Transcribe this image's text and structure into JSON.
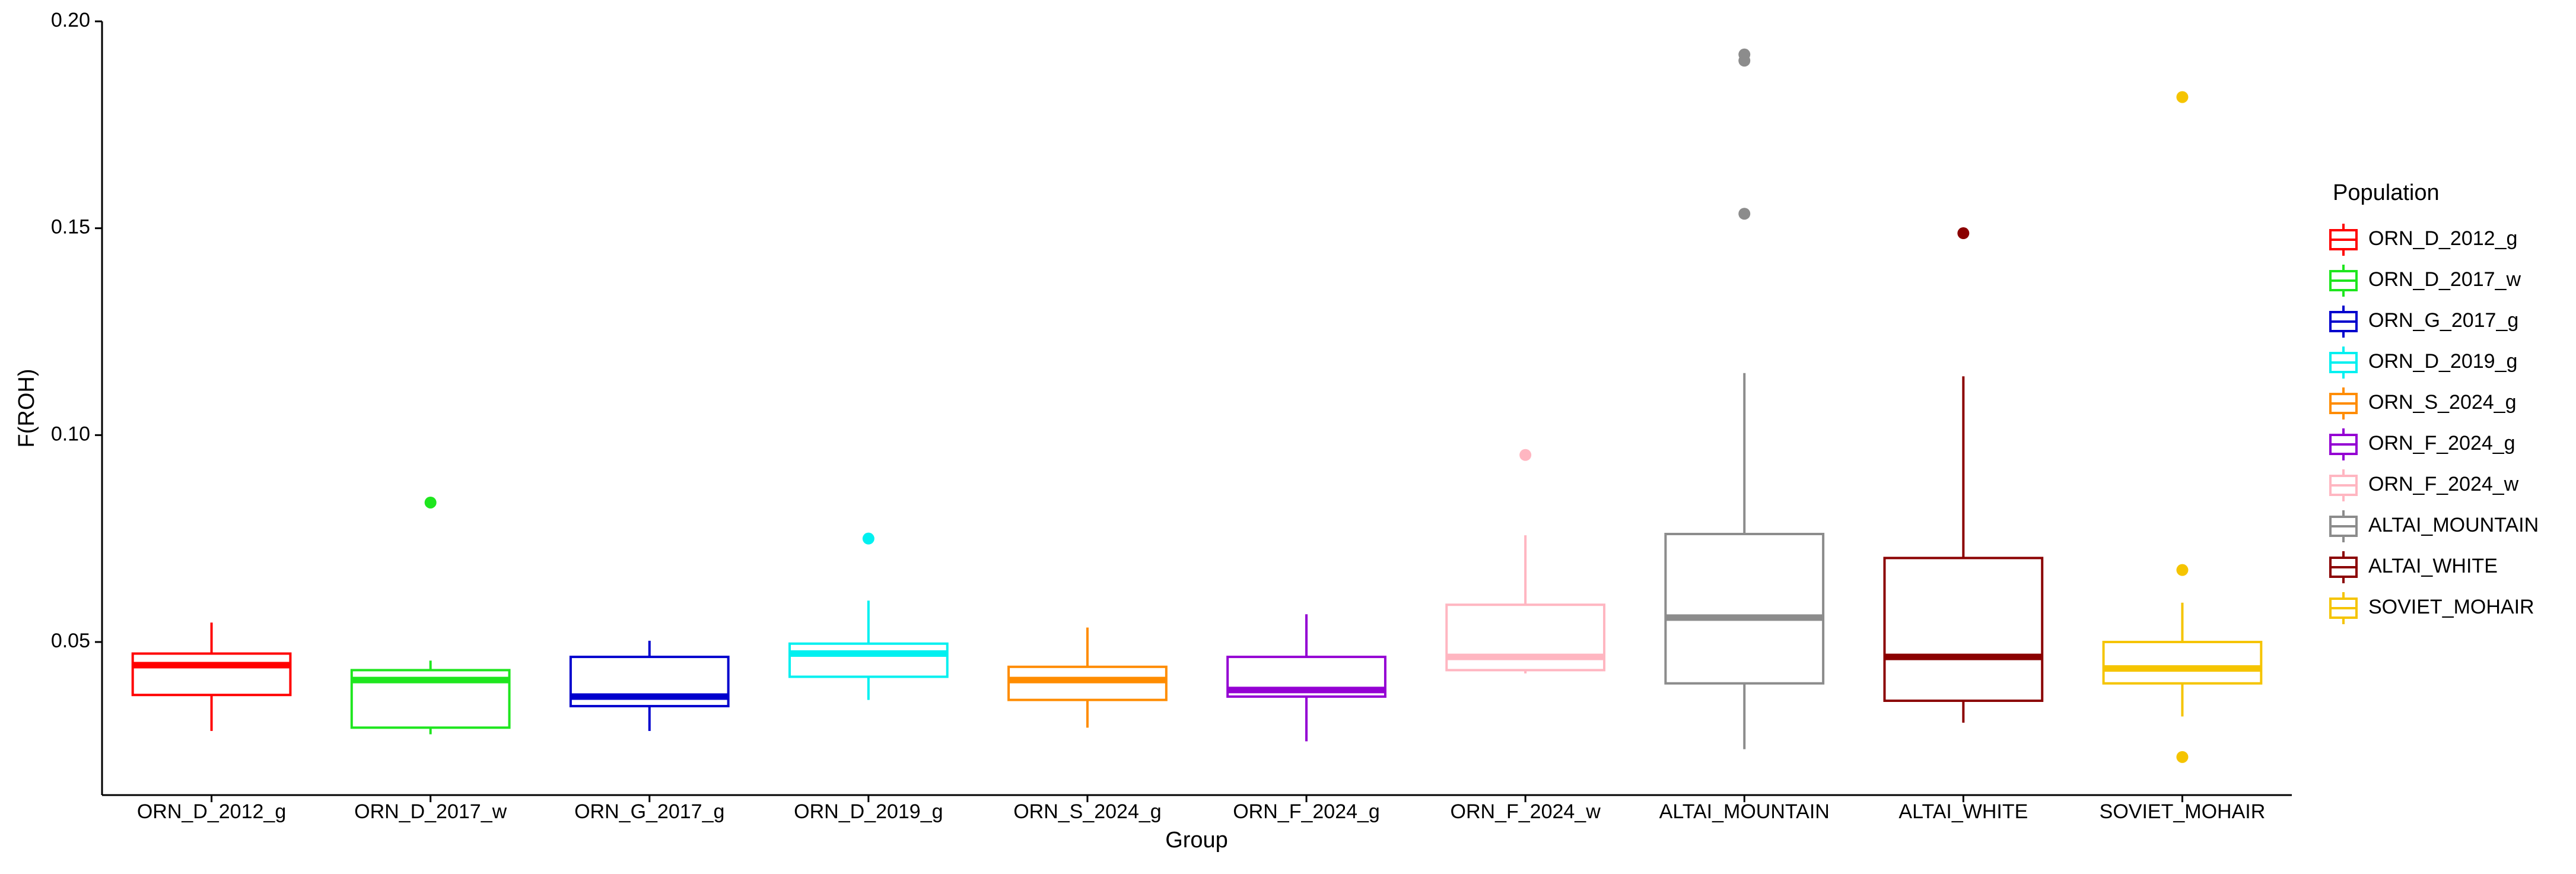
{
  "chart_data": {
    "type": "box",
    "x_label": "Group",
    "y_label": "F(ROH)",
    "legend_title": "Population",
    "legend_position": "right",
    "categories": [
      "ORN_D_2012_g",
      "ORN_D_2017_w",
      "ORN_G_2017_g",
      "ORN_D_2019_g",
      "ORN_S_2024_g",
      "ORN_F_2024_g",
      "ORN_F_2024_w",
      "ALTAI_MOUNTAIN",
      "ALTAI_WHITE",
      "SOVIET_MOHAIR"
    ],
    "ylim": [
      0.013,
      0.2
    ],
    "yticks": [
      0.05,
      {
        "value": 0.1,
        "label": "0.10"
      },
      0.15,
      {
        "value": 0.2,
        "label": "0.20"
      }
    ],
    "series": [
      {
        "name": "ORN_D_2012_g",
        "color": "#ff0000",
        "stats": [
          0.0285,
          0.0372,
          0.0444,
          0.0472,
          0.0547
        ],
        "outliers": []
      },
      {
        "name": "ORN_D_2017_w",
        "color": "#1ee61e",
        "stats": [
          0.0277,
          0.0293,
          0.0408,
          0.0432,
          0.0455
        ],
        "outliers": [
          0.0837
        ]
      },
      {
        "name": "ORN_G_2017_g",
        "color": "#0000cd",
        "stats": [
          0.0285,
          0.0345,
          0.0368,
          0.0464,
          0.0503
        ],
        "outliers": []
      },
      {
        "name": "ORN_D_2019_g",
        "color": "#00f0f0",
        "stats": [
          0.036,
          0.0416,
          0.0472,
          0.0496,
          0.06
        ],
        "outliers": [
          0.075
        ]
      },
      {
        "name": "ORN_S_2024_g",
        "color": "#ff8c00",
        "stats": [
          0.0293,
          0.036,
          0.0408,
          0.044,
          0.0535
        ],
        "outliers": []
      },
      {
        "name": "ORN_F_2024_g",
        "color": "#9400d3",
        "stats": [
          0.026,
          0.0368,
          0.0384,
          0.0464,
          0.0567
        ],
        "outliers": []
      },
      {
        "name": "ORN_F_2024_w",
        "color": "#ffb6c1",
        "stats": [
          0.0424,
          0.0432,
          0.0464,
          0.059,
          0.0758
        ],
        "outliers": [
          0.0952
        ]
      },
      {
        "name": "ALTAI_MOUNTAIN",
        "color": "#8c8c8c",
        "stats": [
          0.0241,
          0.04,
          0.0559,
          0.0761,
          0.115
        ],
        "outliers": [
          0.192,
          0.1905,
          0.1535
        ]
      },
      {
        "name": "ALTAI_WHITE",
        "color": "#8b0000",
        "stats": [
          0.0305,
          0.0358,
          0.0464,
          0.0703,
          0.1142
        ],
        "outliers": [
          0.1488
        ]
      },
      {
        "name": "SOVIET_MOHAIR",
        "color": "#f5c400",
        "stats": [
          0.032,
          0.04,
          0.0436,
          0.05,
          0.0595
        ],
        "outliers": [
          0.1817,
          0.0674,
          0.0222
        ]
      }
    ]
  }
}
